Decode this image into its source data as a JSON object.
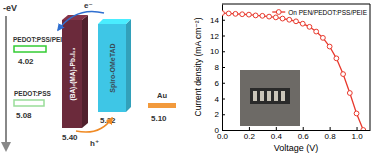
{
  "diagram": {
    "energy_label": "-eV",
    "electron_label": "e⁻",
    "hole_label": "h⁺",
    "layers": [
      {
        "label": "PEDOT:PSS/PEIE",
        "level": "4.02",
        "color": "#33cc33"
      },
      {
        "label": "PEDOT:PSS",
        "level": "5.08",
        "color": "#99dd99"
      },
      {
        "label": "(BA)₂(MA)₃Pb₄I₁₃",
        "level": "5.40",
        "color": "#6b2a3b"
      },
      {
        "label": "Spiro-OMeTAD",
        "level": "5.22",
        "color": "#3ec6e6"
      },
      {
        "label": "Au",
        "level": "5.10",
        "color": "#f29a3c"
      }
    ]
  },
  "chart_data": {
    "type": "line",
    "xlabel": "Voltage (V)",
    "ylabel": "Current density (mA cm⁻²)",
    "x": [
      0,
      0.05,
      0.1,
      0.15,
      0.2,
      0.25,
      0.3,
      0.35,
      0.4,
      0.45,
      0.5,
      0.55,
      0.6,
      0.65,
      0.7,
      0.75,
      0.8,
      0.85,
      0.9,
      0.95,
      1.0,
      1.05
    ],
    "series": [
      {
        "name": "On PEN/PEDOT:PSS/PEIE",
        "color": "#e8392d",
        "marker": "circle",
        "line_style": "solid",
        "values": [
          14.85,
          14.8,
          14.75,
          14.7,
          14.65,
          14.55,
          14.5,
          14.4,
          14.3,
          14.15,
          14.0,
          13.8,
          13.5,
          13.1,
          12.5,
          11.7,
          10.6,
          9.1,
          7.1,
          4.7,
          2.1,
          0.0
        ]
      }
    ],
    "xlim": [
      0,
      1.1
    ],
    "ylim": [
      0,
      16
    ],
    "xticks": [
      {
        "value": 0,
        "label": "0.0"
      },
      {
        "value": 0.2,
        "label": "0.2"
      },
      {
        "value": 0.4,
        "label": "0.4"
      },
      {
        "value": 0.6,
        "label": "0.6"
      },
      {
        "value": 0.8,
        "label": "0.8"
      },
      {
        "value": 1,
        "label": "1.0"
      }
    ],
    "yticks": [
      0,
      2,
      4,
      6,
      8,
      10,
      12,
      14
    ],
    "legend": "upper right"
  }
}
